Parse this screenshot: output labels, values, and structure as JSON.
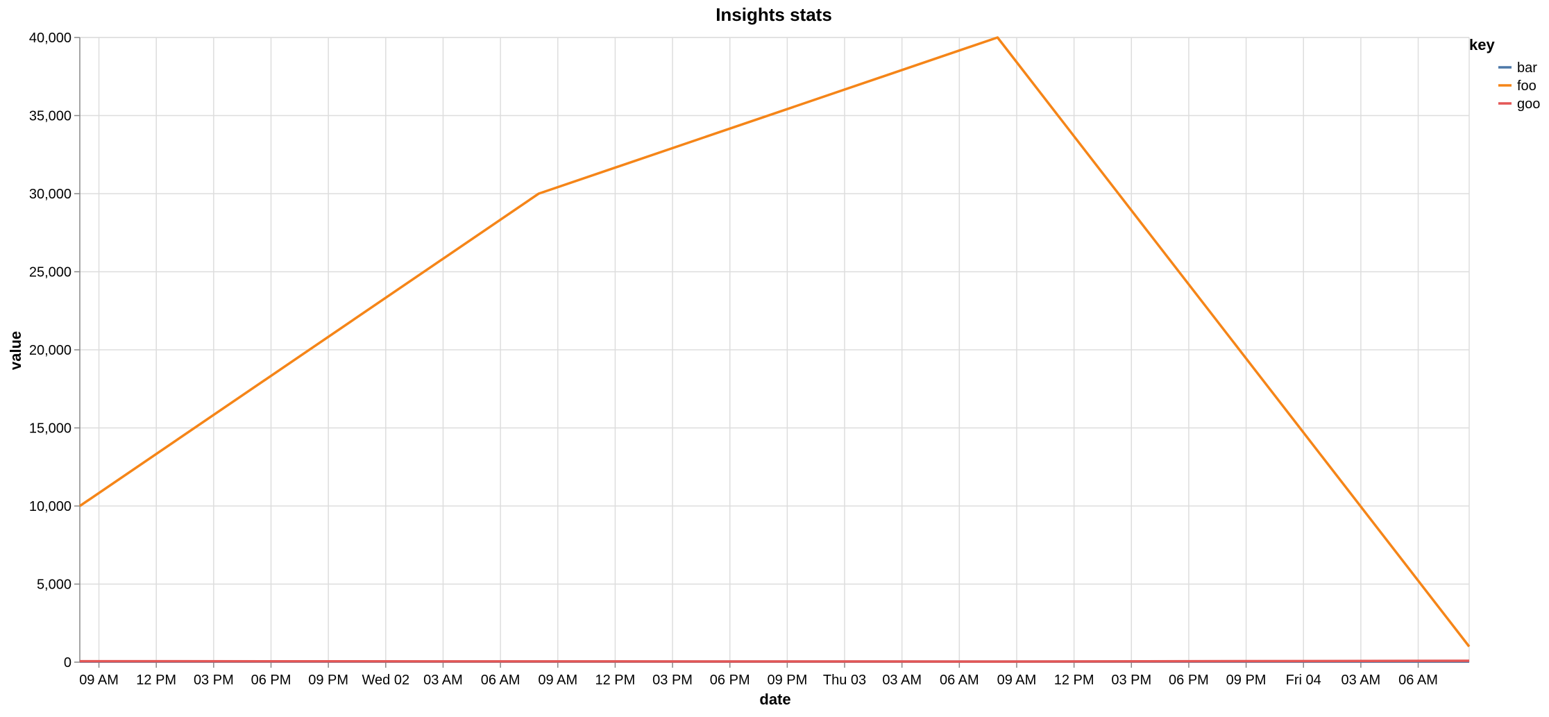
{
  "chart_data": {
    "type": "line",
    "title": "Insights stats",
    "xlabel": "date",
    "ylabel": "value",
    "x_type": "datetime",
    "x_domain": [
      "2023-08-01T08:00",
      "2023-08-04T08:40"
    ],
    "x_ticks": [
      {
        "t": "2023-08-01T09:00",
        "label": "09 AM"
      },
      {
        "t": "2023-08-01T12:00",
        "label": "12 PM"
      },
      {
        "t": "2023-08-01T15:00",
        "label": "03 PM"
      },
      {
        "t": "2023-08-01T18:00",
        "label": "06 PM"
      },
      {
        "t": "2023-08-01T21:00",
        "label": "09 PM"
      },
      {
        "t": "2023-08-02T00:00",
        "label": "Wed 02"
      },
      {
        "t": "2023-08-02T03:00",
        "label": "03 AM"
      },
      {
        "t": "2023-08-02T06:00",
        "label": "06 AM"
      },
      {
        "t": "2023-08-02T09:00",
        "label": "09 AM"
      },
      {
        "t": "2023-08-02T12:00",
        "label": "12 PM"
      },
      {
        "t": "2023-08-02T15:00",
        "label": "03 PM"
      },
      {
        "t": "2023-08-02T18:00",
        "label": "06 PM"
      },
      {
        "t": "2023-08-02T21:00",
        "label": "09 PM"
      },
      {
        "t": "2023-08-03T00:00",
        "label": "Thu 03"
      },
      {
        "t": "2023-08-03T03:00",
        "label": "03 AM"
      },
      {
        "t": "2023-08-03T06:00",
        "label": "06 AM"
      },
      {
        "t": "2023-08-03T09:00",
        "label": "09 AM"
      },
      {
        "t": "2023-08-03T12:00",
        "label": "12 PM"
      },
      {
        "t": "2023-08-03T15:00",
        "label": "03 PM"
      },
      {
        "t": "2023-08-03T18:00",
        "label": "06 PM"
      },
      {
        "t": "2023-08-03T21:00",
        "label": "09 PM"
      },
      {
        "t": "2023-08-04T00:00",
        "label": "Fri 04"
      },
      {
        "t": "2023-08-04T03:00",
        "label": "03 AM"
      },
      {
        "t": "2023-08-04T06:00",
        "label": "06 AM"
      }
    ],
    "y_ticks": [
      {
        "v": 0,
        "label": "0"
      },
      {
        "v": 5000,
        "label": "5,000"
      },
      {
        "v": 10000,
        "label": "10,000"
      },
      {
        "v": 15000,
        "label": "15,000"
      },
      {
        "v": 20000,
        "label": "20,000"
      },
      {
        "v": 25000,
        "label": "25,000"
      },
      {
        "v": 30000,
        "label": "30,000"
      },
      {
        "v": 35000,
        "label": "35,000"
      },
      {
        "v": 40000,
        "label": "40,000"
      }
    ],
    "ylim": [
      0,
      40000
    ],
    "grid": true,
    "legend": {
      "title": "key",
      "position": "top-right"
    },
    "series": [
      {
        "name": "bar",
        "color": "#4c78a8",
        "points": [
          [
            "2023-08-01T08:00",
            40
          ],
          [
            "2023-08-02T08:00",
            40
          ],
          [
            "2023-08-03T08:00",
            40
          ],
          [
            "2023-08-04T08:40",
            40
          ]
        ]
      },
      {
        "name": "foo",
        "color": "#f58518",
        "points": [
          [
            "2023-08-01T08:00",
            10000
          ],
          [
            "2023-08-02T08:00",
            30000
          ],
          [
            "2023-08-03T08:00",
            40000
          ],
          [
            "2023-08-04T08:40",
            1000
          ]
        ]
      },
      {
        "name": "goo",
        "color": "#e45756",
        "points": [
          [
            "2023-08-01T08:00",
            60
          ],
          [
            "2023-08-02T08:00",
            50
          ],
          [
            "2023-08-03T08:00",
            40
          ],
          [
            "2023-08-04T08:40",
            90
          ]
        ]
      }
    ]
  }
}
